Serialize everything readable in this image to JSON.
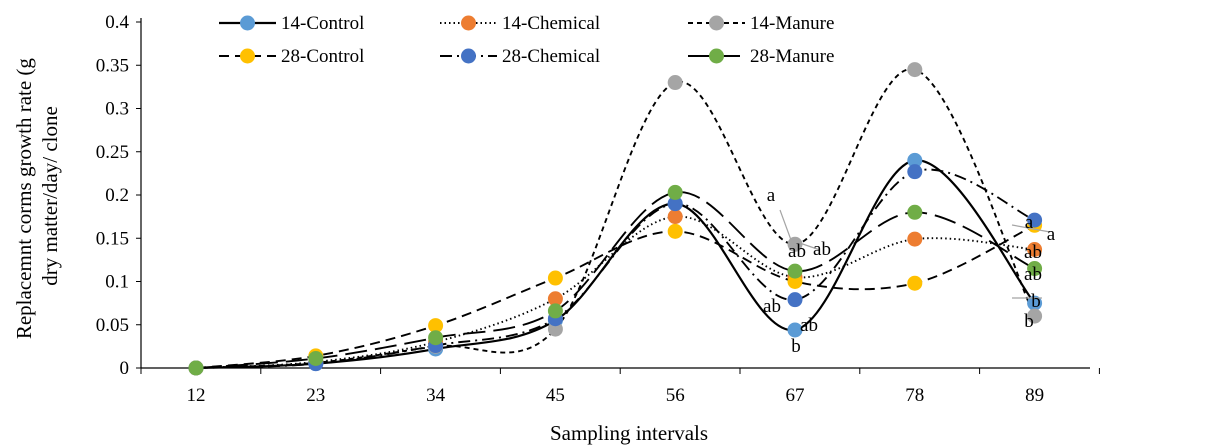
{
  "chart_data": {
    "type": "line",
    "title": "",
    "xlabel": "Sampling intervals",
    "ylabel": [
      "Replacemnt corms growth rate (g",
      "dry matter/day/ clone"
    ],
    "x": [
      12,
      23,
      34,
      45,
      56,
      67,
      78,
      89
    ],
    "x_tick_labels": [
      "12",
      "23",
      "34",
      "45",
      "56",
      "67",
      "78",
      "89"
    ],
    "ylim": [
      0,
      0.4
    ],
    "y_tick_labels": [
      "0",
      "0.05",
      "0.1",
      "0.15",
      "0.2",
      "0.25",
      "0.3",
      "0.35",
      "0.4"
    ],
    "grid": false,
    "legend": {
      "position": "top",
      "columns": 3
    },
    "series": [
      {
        "name": "14-Control",
        "line_style": "solid",
        "line_color": "#000000",
        "marker_color": "#5B9BD5",
        "values": [
          0.0,
          0.005,
          0.022,
          0.055,
          0.19,
          0.044,
          0.24,
          0.075
        ]
      },
      {
        "name": "14-Chemical",
        "line_style": "dotted",
        "line_color": "#000000",
        "marker_color": "#ED7D31",
        "values": [
          0.0,
          0.007,
          0.03,
          0.08,
          0.175,
          0.105,
          0.149,
          0.137
        ]
      },
      {
        "name": "14-Manure",
        "line_style": "short-dash",
        "line_color": "#000000",
        "marker_color": "#A5A5A5",
        "values": [
          0.0,
          0.006,
          0.025,
          0.045,
          0.33,
          0.143,
          0.345,
          0.06
        ]
      },
      {
        "name": "28-Control",
        "line_style": "dash",
        "line_color": "#000000",
        "marker_color": "#FFC000",
        "values": [
          0.0,
          0.014,
          0.049,
          0.104,
          0.158,
          0.1,
          0.098,
          0.165
        ]
      },
      {
        "name": "28-Chemical",
        "line_style": "dash-dot",
        "line_color": "#000000",
        "marker_color": "#4472C4",
        "values": [
          0.0,
          0.005,
          0.026,
          0.057,
          0.19,
          0.079,
          0.227,
          0.171
        ]
      },
      {
        "name": "28-Manure",
        "line_style": "long-dash",
        "line_color": "#000000",
        "marker_color": "#70AD47",
        "values": [
          0.0,
          0.011,
          0.035,
          0.066,
          0.203,
          0.112,
          0.18,
          0.115
        ]
      }
    ],
    "annotations": [
      {
        "text": "a",
        "x": 67,
        "y": 0.2
      },
      {
        "text": "ab",
        "x": 67,
        "y": 0.136
      },
      {
        "text": "ab",
        "x": 67,
        "y": 0.127
      },
      {
        "text": "ab",
        "x": 67,
        "y": 0.077
      },
      {
        "text": "ab",
        "x": 67,
        "y": 0.077
      },
      {
        "text": "b",
        "x": 67,
        "y": 0.03
      },
      {
        "text": "a",
        "x": 89,
        "y": 0.171
      },
      {
        "text": "a",
        "x": 89,
        "y": 0.162
      },
      {
        "text": "ab",
        "x": 89,
        "y": 0.137
      },
      {
        "text": "ab",
        "x": 89,
        "y": 0.11
      },
      {
        "text": "b",
        "x": 89,
        "y": 0.075
      },
      {
        "text": "b",
        "x": 89,
        "y": 0.058
      }
    ]
  }
}
